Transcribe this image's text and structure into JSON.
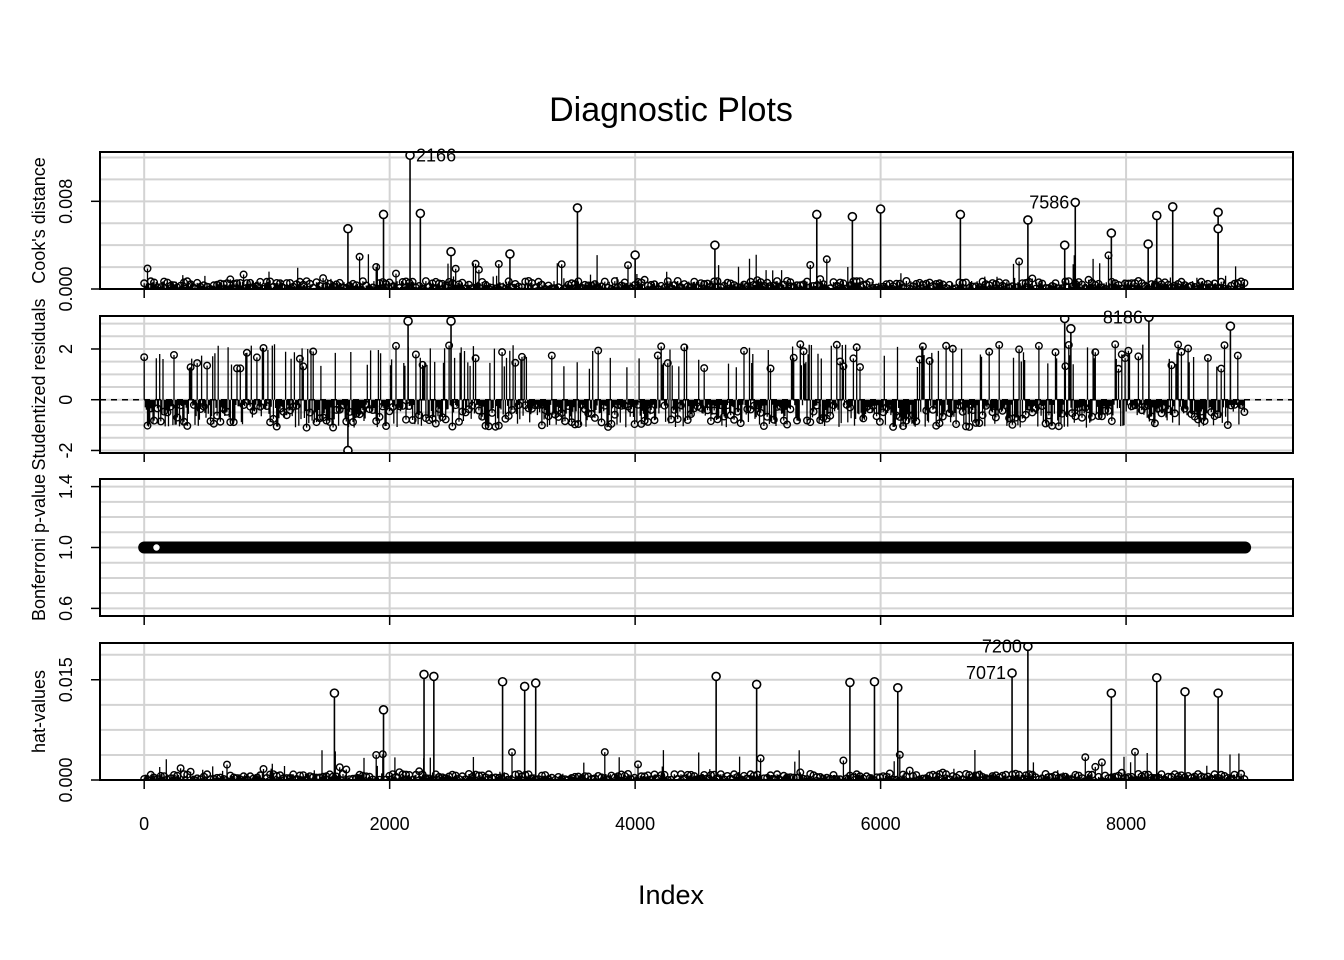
{
  "chart_data": {
    "type": "scatter",
    "title": "Diagnostic Plots",
    "xlabel": "Index",
    "xlim": [
      -360,
      9360
    ],
    "x_ticks": [
      "0",
      "2000",
      "4000",
      "6000",
      "8000"
    ],
    "n_points": 8970,
    "grid": true,
    "style": "index plot with vertical lines from 0 (type h) and open circles",
    "panels": [
      {
        "ylabel": "Cook's distance",
        "ylim": [
          0,
          0.0125
        ],
        "y_ticks": [
          "0.000",
          "0.008"
        ],
        "baseline_value": 0,
        "reference_line": null,
        "labeled_points": [
          {
            "label": "2166",
            "x": 2166,
            "y": 0.0122
          },
          {
            "label": "7586",
            "x": 7586,
            "y": 0.0079
          }
        ],
        "notable_points": [
          {
            "x": 1660,
            "y": 0.0055
          },
          {
            "x": 1950,
            "y": 0.0068
          },
          {
            "x": 2250,
            "y": 0.0069
          },
          {
            "x": 2500,
            "y": 0.0034
          },
          {
            "x": 2980,
            "y": 0.0032
          },
          {
            "x": 3530,
            "y": 0.0074
          },
          {
            "x": 4000,
            "y": 0.0031
          },
          {
            "x": 4650,
            "y": 0.004
          },
          {
            "x": 5480,
            "y": 0.0068
          },
          {
            "x": 5770,
            "y": 0.0066
          },
          {
            "x": 6000,
            "y": 0.0073
          },
          {
            "x": 6650,
            "y": 0.0068
          },
          {
            "x": 7200,
            "y": 0.0063
          },
          {
            "x": 7500,
            "y": 0.004
          },
          {
            "x": 7880,
            "y": 0.0051
          },
          {
            "x": 8180,
            "y": 0.0041
          },
          {
            "x": 8250,
            "y": 0.0067
          },
          {
            "x": 8380,
            "y": 0.0075
          },
          {
            "x": 8750,
            "y": 0.007
          },
          {
            "x": 8750,
            "y": 0.0055
          }
        ]
      },
      {
        "ylabel": "Studentized residuals",
        "ylim": [
          -2.1,
          3.3
        ],
        "y_ticks": [
          "-2",
          "0",
          "2"
        ],
        "baseline_value": 0,
        "reference_line": 0,
        "labeled_points": [
          {
            "label": "8186",
            "x": 8186,
            "y": 3.25
          }
        ],
        "notable_points": [
          {
            "x": 1660,
            "y": -2.0
          },
          {
            "x": 2150,
            "y": 3.1
          },
          {
            "x": 2500,
            "y": 3.1
          },
          {
            "x": 7500,
            "y": 3.2
          },
          {
            "x": 7550,
            "y": 2.8
          },
          {
            "x": 8850,
            "y": 2.9
          }
        ]
      },
      {
        "ylabel": "Bonferroni p-value",
        "ylim": [
          0.55,
          1.45
        ],
        "y_ticks": [
          "0.6",
          "1.0",
          "1.4"
        ],
        "baseline_value": 1.0,
        "reference_line": null,
        "constant_value": 1.0,
        "labeled_points": [],
        "notable_points": [
          {
            "x": 100,
            "y": 1.0
          }
        ]
      },
      {
        "ylabel": "hat-values",
        "ylim": [
          0,
          0.0205
        ],
        "y_ticks": [
          "0.000",
          "0.015"
        ],
        "baseline_value": 0,
        "reference_line": null,
        "labeled_points": [
          {
            "label": "7200",
            "x": 7200,
            "y": 0.02
          },
          {
            "label": "7071",
            "x": 7071,
            "y": 0.016
          }
        ],
        "notable_points": [
          {
            "x": 1550,
            "y": 0.013
          },
          {
            "x": 1950,
            "y": 0.0105
          },
          {
            "x": 2280,
            "y": 0.0158
          },
          {
            "x": 2360,
            "y": 0.0155
          },
          {
            "x": 2920,
            "y": 0.0147
          },
          {
            "x": 3100,
            "y": 0.014
          },
          {
            "x": 3190,
            "y": 0.0145
          },
          {
            "x": 4660,
            "y": 0.0155
          },
          {
            "x": 4990,
            "y": 0.0143
          },
          {
            "x": 5750,
            "y": 0.0146
          },
          {
            "x": 5950,
            "y": 0.0147
          },
          {
            "x": 6140,
            "y": 0.0138
          },
          {
            "x": 8250,
            "y": 0.0153
          },
          {
            "x": 8480,
            "y": 0.0132
          },
          {
            "x": 8750,
            "y": 0.013
          },
          {
            "x": 7880,
            "y": 0.013
          }
        ]
      }
    ]
  }
}
